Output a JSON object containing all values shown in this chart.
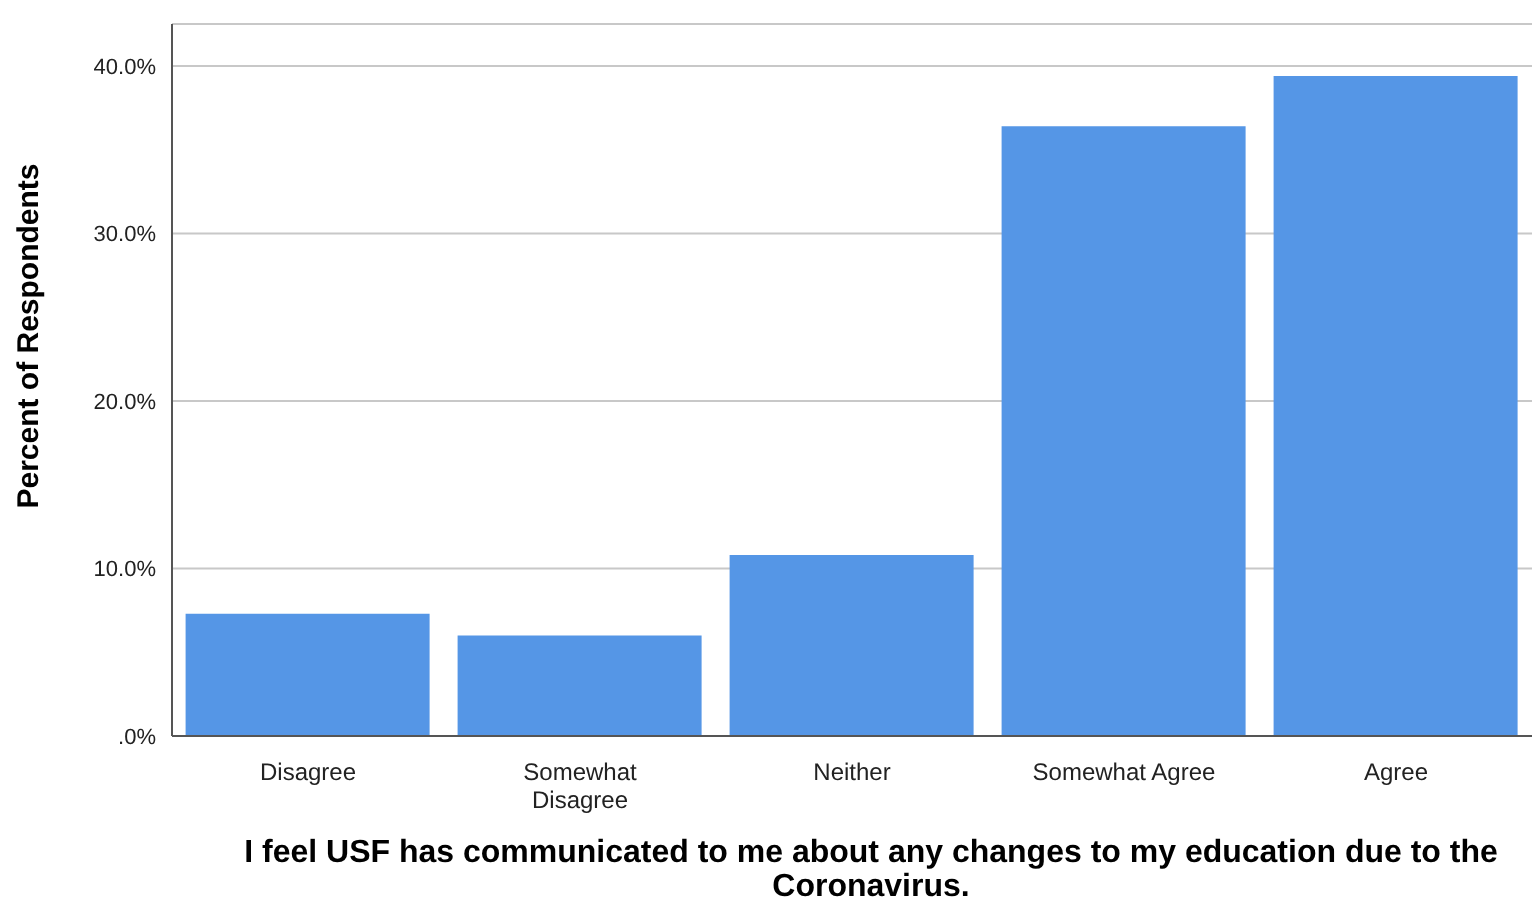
{
  "chart_data": {
    "type": "bar",
    "xlabel": "I feel USF has communicated to me about any changes to my education due to the Coronavirus.",
    "ylabel": "Percent of Respondents",
    "categories": [
      "Disagree",
      "Somewhat Disagree",
      "Neither",
      "Somewhat Agree",
      "Agree"
    ],
    "values": [
      7.3,
      6.0,
      10.8,
      36.4,
      39.4
    ],
    "color": "#5596e6",
    "ylim": [
      0,
      42.5
    ],
    "yticks": [
      {
        "value": 0,
        "label": ".0%"
      },
      {
        "value": 10,
        "label": "10.0%"
      },
      {
        "value": 20,
        "label": "20.0%"
      },
      {
        "value": 30,
        "label": "30.0%"
      },
      {
        "value": 40,
        "label": "40.0%"
      }
    ],
    "grid": "y"
  }
}
